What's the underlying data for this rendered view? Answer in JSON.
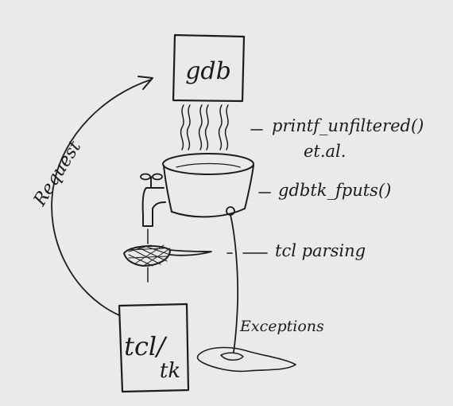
{
  "boxes": {
    "gdb": "gdb",
    "tcl_top": "tcl/",
    "tcl_bottom": "tk"
  },
  "labels": {
    "request": "Request",
    "printf": "printf_unfiltered()",
    "etal": "et.al.",
    "fputs": "gdbtk_fputs()",
    "tcl_parsing": "tcl parsing",
    "exceptions": "Exceptions"
  }
}
